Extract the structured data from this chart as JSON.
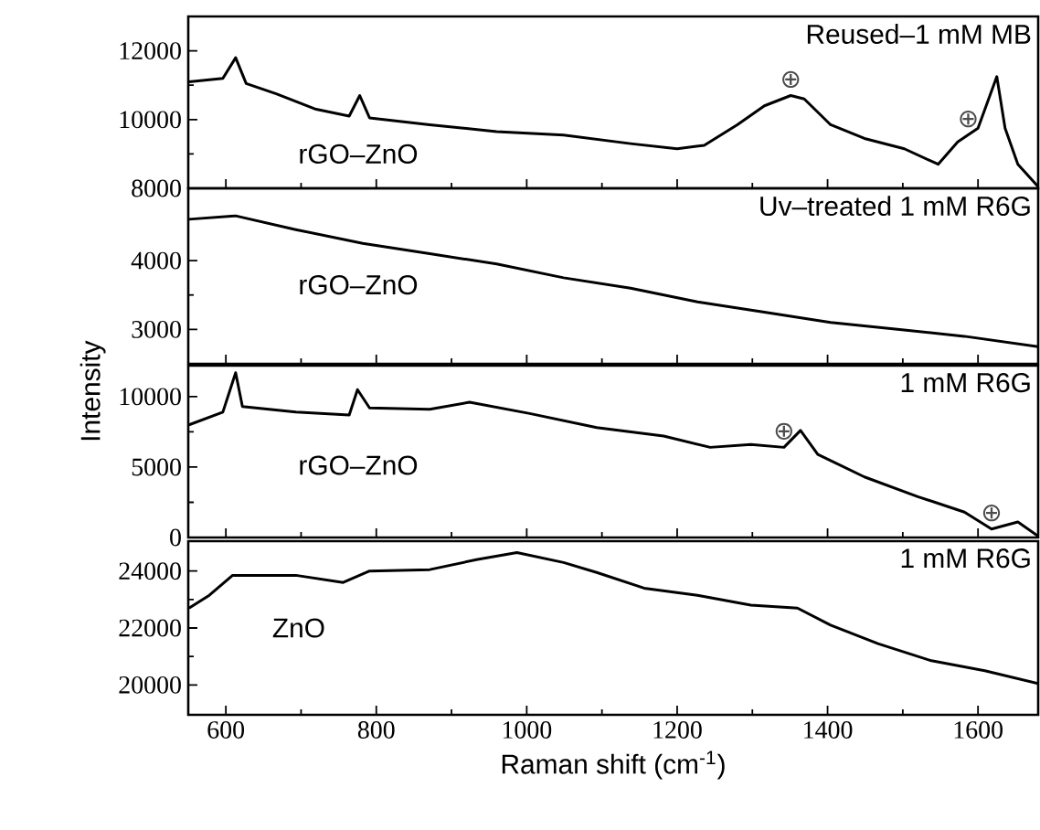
{
  "chart_data": [
    {
      "type": "line",
      "xlim": [
        550,
        1680
      ],
      "xticks": [
        600,
        800,
        1000,
        1200,
        1400,
        1600
      ],
      "ylim": [
        8000,
        13000
      ],
      "yticks": [
        8000,
        10000,
        12000
      ],
      "tick_labels": "y",
      "annotations": [
        "Reused–1 mM MB",
        "rGO–ZnO",
        {
          "text": "⊕",
          "x": 1351,
          "y": 10700
        },
        {
          "text": "⊕",
          "x": 1587,
          "y": 9550
        }
      ],
      "series": [
        {
          "color": "#000000",
          "x": [
            551,
            596,
            613,
            627,
            667,
            720,
            764,
            778,
            791,
            871,
            960,
            1049,
            1138,
            1200,
            1236,
            1280,
            1316,
            1351,
            1369,
            1404,
            1449,
            1502,
            1547,
            1573,
            1600,
            1625,
            1636,
            1653,
            1680
          ],
          "values": [
            11100,
            11200,
            11800,
            11050,
            10750,
            10300,
            10100,
            10700,
            10050,
            9850,
            9650,
            9550,
            9300,
            9150,
            9250,
            9850,
            10400,
            10700,
            10600,
            9850,
            9450,
            9150,
            8700,
            9350,
            9750,
            11250,
            9750,
            8700,
            8050
          ]
        }
      ]
    },
    {
      "type": "line",
      "xlim": [
        550,
        1680
      ],
      "xticks": [
        600,
        800,
        1000,
        1200,
        1400,
        1600
      ],
      "ylim": [
        2500,
        5050
      ],
      "yticks": [
        3000,
        4000
      ],
      "tick_labels": "y",
      "annotations": [
        "Uv–treated 1 mM R6G",
        "rGO–ZnO"
      ],
      "series": [
        {
          "color": "#000000",
          "x": [
            551,
            613,
            693,
            782,
            871,
            960,
            1049,
            1138,
            1227,
            1316,
            1404,
            1493,
            1582,
            1680
          ],
          "values": [
            4600,
            4650,
            4450,
            4250,
            4100,
            3950,
            3750,
            3600,
            3400,
            3250,
            3100,
            3000,
            2900,
            2750
          ]
        }
      ]
    },
    {
      "type": "line",
      "xlim": [
        550,
        1680
      ],
      "xticks": [
        600,
        800,
        1000,
        1200,
        1400,
        1600
      ],
      "ylim": [
        0,
        12200
      ],
      "yticks": [
        0,
        5000,
        10000
      ],
      "tick_labels": "y",
      "ylabel": "Intensity",
      "annotations": [
        "1 mM R6G",
        "rGO–ZnO",
        {
          "text": "⊕",
          "x": 1342,
          "y": 6400
        },
        {
          "text": "⊕",
          "x": 1618,
          "y": 600
        }
      ],
      "series": [
        {
          "color": "#000000",
          "x": [
            551,
            596,
            613,
            622,
            693,
            764,
            775,
            791,
            871,
            924,
            1004,
            1093,
            1182,
            1244,
            1298,
            1342,
            1364,
            1387,
            1449,
            1520,
            1582,
            1618,
            1653,
            1680
          ],
          "values": [
            8000,
            8900,
            11700,
            9300,
            8900,
            8700,
            10500,
            9200,
            9100,
            9600,
            8800,
            7800,
            7200,
            6400,
            6600,
            6400,
            7600,
            5900,
            4300,
            2900,
            1800,
            600,
            1100,
            100
          ]
        }
      ]
    },
    {
      "type": "line",
      "xlim": [
        550,
        1680
      ],
      "xticks": [
        600,
        800,
        1000,
        1200,
        1400,
        1600
      ],
      "ylim": [
        18950,
        25050
      ],
      "yticks": [
        20000,
        22000,
        24000
      ],
      "xlabel": "Raman shift (cm$^{-1}$)",
      "annotations": [
        "1 mM R6G",
        "ZnO"
      ],
      "series": [
        {
          "color": "#000000",
          "x": [
            551,
            578,
            609,
            693,
            756,
            791,
            871,
            933,
            987,
            1049,
            1093,
            1156,
            1227,
            1298,
            1360,
            1404,
            1467,
            1538,
            1609,
            1680
          ],
          "values": [
            22700,
            23150,
            23850,
            23850,
            23600,
            24000,
            24050,
            24400,
            24650,
            24300,
            23950,
            23400,
            23150,
            22800,
            22700,
            22100,
            21450,
            20850,
            20500,
            20050
          ]
        }
      ]
    }
  ]
}
